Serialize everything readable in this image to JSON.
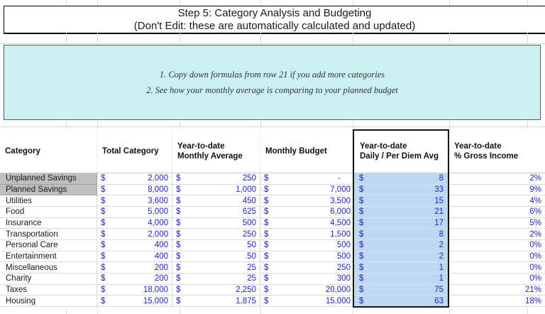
{
  "title": {
    "line1": "Step 5: Category Analysis and Budgeting",
    "line2": "(Don't Edit: these are automatically calculated and updated)"
  },
  "instructions": {
    "line1": "1. Copy down formulas from row 21 if you add more categories",
    "line2": "2. See how your monthly average is comparing to your planned budget"
  },
  "table": {
    "currency_symbol": "$",
    "headers": [
      "Category",
      "Total Category",
      "Year-to-date\nMonthly Average",
      "Monthly Budget",
      "Year-to-date\nDaily / Per Diem Avg",
      "Year-to-date\n% Gross Income"
    ],
    "rows": [
      {
        "category": "Unplanned Savings",
        "highlighted": true,
        "total": "2,000",
        "monthly_avg": "250",
        "monthly_budget": "-",
        "daily_avg": "8",
        "pct_gross_income": "2%"
      },
      {
        "category": "Planned Savings",
        "highlighted": true,
        "total": "8,000",
        "monthly_avg": "1,000",
        "monthly_budget": "7,000",
        "daily_avg": "33",
        "pct_gross_income": "9%"
      },
      {
        "category": "Utilities",
        "highlighted": false,
        "total": "3,600",
        "monthly_avg": "450",
        "monthly_budget": "3,500",
        "daily_avg": "15",
        "pct_gross_income": "4%"
      },
      {
        "category": "Food",
        "highlighted": false,
        "total": "5,000",
        "monthly_avg": "625",
        "monthly_budget": "6,000",
        "daily_avg": "21",
        "pct_gross_income": "6%"
      },
      {
        "category": "Insurance",
        "highlighted": false,
        "total": "4,000",
        "monthly_avg": "500",
        "monthly_budget": "4,500",
        "daily_avg": "17",
        "pct_gross_income": "5%"
      },
      {
        "category": "Transportation",
        "highlighted": false,
        "total": "2,000",
        "monthly_avg": "250",
        "monthly_budget": "1,500",
        "daily_avg": "8",
        "pct_gross_income": "2%"
      },
      {
        "category": "Personal Care",
        "highlighted": false,
        "total": "400",
        "monthly_avg": "50",
        "monthly_budget": "500",
        "daily_avg": "2",
        "pct_gross_income": "0%"
      },
      {
        "category": "Entertainment",
        "highlighted": false,
        "total": "400",
        "monthly_avg": "50",
        "monthly_budget": "500",
        "daily_avg": "2",
        "pct_gross_income": "0%"
      },
      {
        "category": "Miscellaneous",
        "highlighted": false,
        "total": "200",
        "monthly_avg": "25",
        "monthly_budget": "250",
        "daily_avg": "1",
        "pct_gross_income": "0%"
      },
      {
        "category": "Charity",
        "highlighted": false,
        "total": "200",
        "monthly_avg": "25",
        "monthly_budget": "300",
        "daily_avg": "1",
        "pct_gross_income": "0%"
      },
      {
        "category": "Taxes",
        "highlighted": false,
        "total": "18,000",
        "monthly_avg": "2,250",
        "monthly_budget": "20,000",
        "daily_avg": "75",
        "pct_gross_income": "21%"
      },
      {
        "category": "Housing",
        "highlighted": false,
        "total": "15,000",
        "monthly_avg": "1,875",
        "monthly_budget": "15,000",
        "daily_avg": "63",
        "pct_gross_income": "18%"
      }
    ]
  },
  "selection": {
    "selected_column": "Year-to-date Daily / Per Diem Avg"
  },
  "colors": {
    "note_bg": "#CBF1F2",
    "highlight": "#BDD9F2",
    "gray_cell": "#BFBFBF",
    "num_blue": "#2424CC",
    "gridline": "#D9D9D9"
  }
}
